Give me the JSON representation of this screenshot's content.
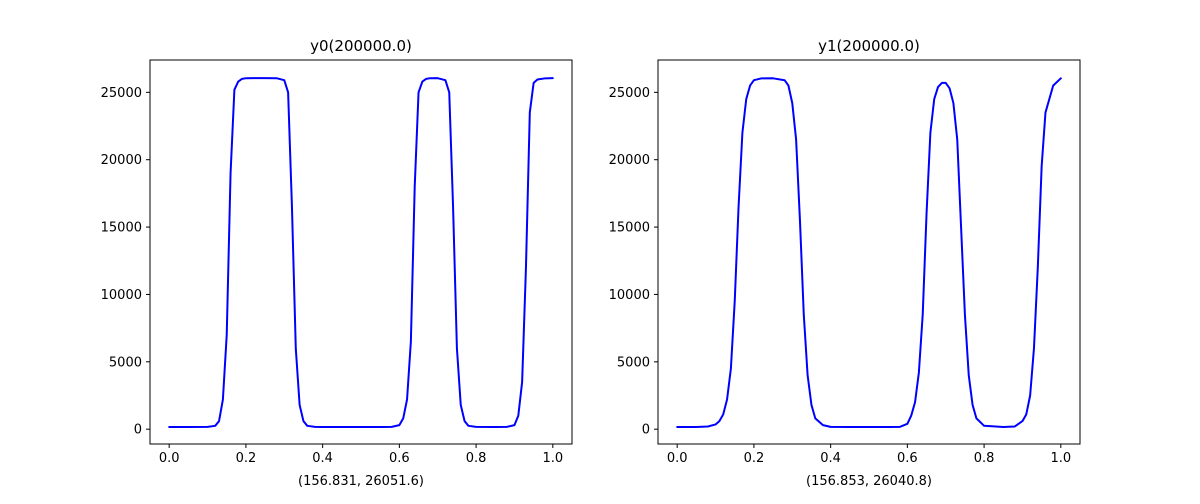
{
  "chart_data": [
    {
      "type": "line",
      "title": "y0(200000.0)",
      "xlabel": "(156.831, 26051.6)",
      "ylabel": "",
      "xlim": [
        -0.05,
        1.05
      ],
      "ylim": [
        -1100,
        27400
      ],
      "xticks": [
        0.0,
        0.2,
        0.4,
        0.6,
        0.8,
        1.0
      ],
      "xtick_labels": [
        "0.0",
        "0.2",
        "0.4",
        "0.6",
        "0.8",
        "1.0"
      ],
      "yticks": [
        0,
        5000,
        10000,
        15000,
        20000,
        25000
      ],
      "ytick_labels": [
        "0",
        "5000",
        "10000",
        "15000",
        "20000",
        "25000"
      ],
      "grid": false,
      "series": [
        {
          "color": "#0000ff",
          "x": [
            0.0,
            0.05,
            0.1,
            0.12,
            0.13,
            0.14,
            0.15,
            0.16,
            0.17,
            0.18,
            0.19,
            0.2,
            0.22,
            0.25,
            0.28,
            0.3,
            0.31,
            0.32,
            0.33,
            0.34,
            0.35,
            0.36,
            0.38,
            0.4,
            0.45,
            0.5,
            0.55,
            0.58,
            0.6,
            0.61,
            0.62,
            0.63,
            0.64,
            0.65,
            0.66,
            0.67,
            0.68,
            0.7,
            0.72,
            0.73,
            0.74,
            0.75,
            0.76,
            0.77,
            0.78,
            0.8,
            0.85,
            0.88,
            0.9,
            0.91,
            0.92,
            0.93,
            0.94,
            0.95,
            0.96,
            0.98,
            1.0
          ],
          "y": [
            157,
            157,
            170,
            250,
            600,
            2200,
            7000,
            19000,
            25200,
            25800,
            26000,
            26050,
            26052,
            26052,
            26050,
            25900,
            25000,
            16500,
            6000,
            1800,
            600,
            250,
            170,
            157,
            157,
            157,
            157,
            170,
            300,
            800,
            2200,
            6500,
            18000,
            25000,
            25800,
            26000,
            26050,
            26052,
            25900,
            25000,
            16500,
            6000,
            1800,
            600,
            250,
            170,
            157,
            170,
            300,
            1000,
            3500,
            12000,
            23500,
            25700,
            25950,
            26040,
            26052
          ]
        }
      ]
    },
    {
      "type": "line",
      "title": "y1(200000.0)",
      "xlabel": "(156.853, 26040.8)",
      "ylabel": "",
      "xlim": [
        -0.05,
        1.05
      ],
      "ylim": [
        -1100,
        27400
      ],
      "xticks": [
        0.0,
        0.2,
        0.4,
        0.6,
        0.8,
        1.0
      ],
      "xtick_labels": [
        "0.0",
        "0.2",
        "0.4",
        "0.6",
        "0.8",
        "1.0"
      ],
      "yticks": [
        0,
        5000,
        10000,
        15000,
        20000,
        25000
      ],
      "ytick_labels": [
        "0",
        "5000",
        "10000",
        "15000",
        "20000",
        "25000"
      ],
      "grid": false,
      "series": [
        {
          "color": "#0000ff",
          "x": [
            0.0,
            0.05,
            0.08,
            0.1,
            0.11,
            0.12,
            0.13,
            0.14,
            0.15,
            0.16,
            0.17,
            0.18,
            0.19,
            0.2,
            0.22,
            0.25,
            0.28,
            0.29,
            0.3,
            0.31,
            0.32,
            0.33,
            0.34,
            0.35,
            0.36,
            0.38,
            0.4,
            0.45,
            0.5,
            0.55,
            0.58,
            0.6,
            0.61,
            0.62,
            0.63,
            0.64,
            0.65,
            0.66,
            0.67,
            0.68,
            0.69,
            0.7,
            0.71,
            0.72,
            0.73,
            0.74,
            0.75,
            0.76,
            0.77,
            0.78,
            0.8,
            0.85,
            0.88,
            0.9,
            0.91,
            0.92,
            0.93,
            0.94,
            0.95,
            0.96,
            0.98,
            1.0
          ],
          "y": [
            157,
            157,
            200,
            350,
            600,
            1100,
            2200,
            4500,
            9500,
            16500,
            22000,
            24500,
            25500,
            25900,
            26040,
            26041,
            25900,
            25500,
            24200,
            21500,
            15500,
            8500,
            4000,
            1800,
            800,
            300,
            170,
            157,
            157,
            157,
            170,
            400,
            1000,
            2000,
            4200,
            8500,
            16000,
            22000,
            24500,
            25400,
            25700,
            25700,
            25300,
            24200,
            21500,
            15000,
            8500,
            4000,
            1800,
            800,
            250,
            157,
            200,
            600,
            1100,
            2500,
            6000,
            12000,
            19500,
            23500,
            25500,
            26041
          ]
        }
      ]
    }
  ]
}
